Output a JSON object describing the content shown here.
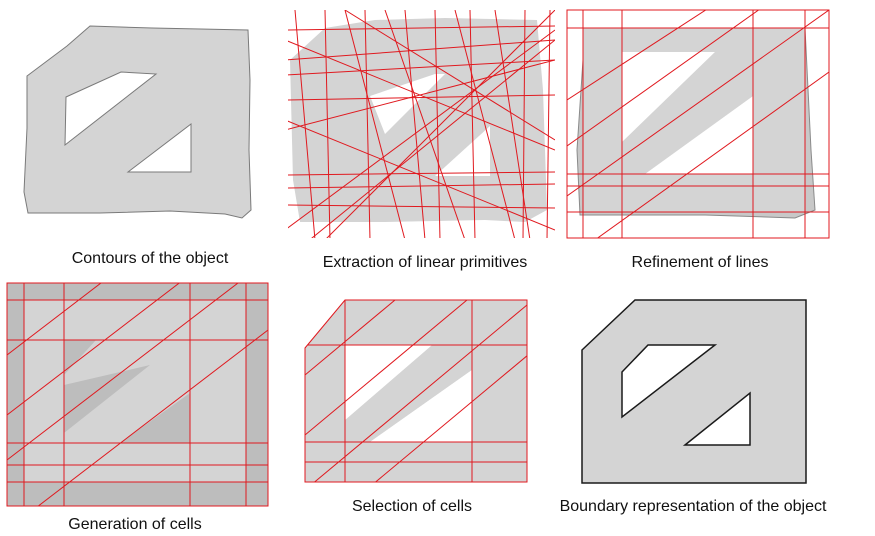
{
  "captions": {
    "contours": "Contours of the object",
    "extraction": "Extraction of linear primitives",
    "refinement": "Refinement of lines",
    "generation": "Generation of cells",
    "selection": "Selection of cells",
    "boundary": "Boundary representation of the object"
  },
  "colors": {
    "fill": "#d4d4d4",
    "dark_cell": "#bdbdbd",
    "outline": "#7a7a7a",
    "red": "#e0191f",
    "boundary": "#1a1a1a"
  }
}
